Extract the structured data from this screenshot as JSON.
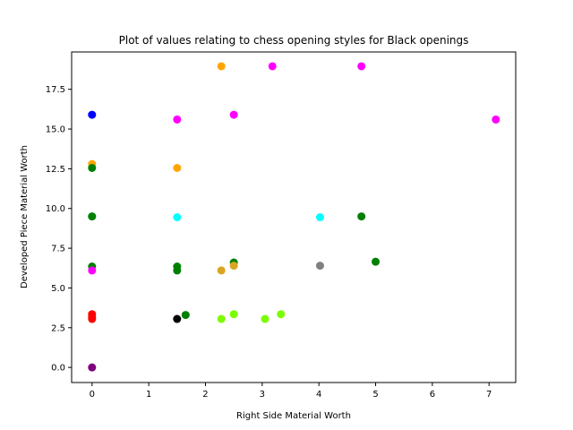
{
  "chart_data": {
    "type": "scatter",
    "title": "Plot of values relating to chess opening styles for Black openings",
    "xlabel": "Right Side Material Worth",
    "ylabel": "Developed Piece Material Worth",
    "xlim": [
      -0.36,
      7.47
    ],
    "ylim": [
      -0.95,
      19.85
    ],
    "xticks": [
      0,
      1,
      2,
      3,
      4,
      5,
      6,
      7
    ],
    "xtick_labels": [
      "0",
      "1",
      "2",
      "3",
      "4",
      "5",
      "6",
      "7"
    ],
    "yticks": [
      0.0,
      2.5,
      5.0,
      7.5,
      10.0,
      12.5,
      15.0,
      17.5
    ],
    "ytick_labels": [
      "0.0",
      "2.5",
      "5.0",
      "7.5",
      "10.0",
      "12.5",
      "15.0",
      "17.5"
    ],
    "grid": false,
    "points": [
      {
        "x": 0,
        "y": 15.9,
        "color": "#0000ff"
      },
      {
        "x": 0,
        "y": 12.8,
        "color": "#ffa500"
      },
      {
        "x": 0,
        "y": 12.55,
        "color": "#008000"
      },
      {
        "x": 0,
        "y": 9.5,
        "color": "#00ffff"
      },
      {
        "x": 0,
        "y": 9.5,
        "color": "#008000"
      },
      {
        "x": 0,
        "y": 6.35,
        "color": "#008000"
      },
      {
        "x": 0,
        "y": 6.1,
        "color": "#ff00ff"
      },
      {
        "x": 0,
        "y": 3.35,
        "color": "#ff0000"
      },
      {
        "x": 0,
        "y": 3.2,
        "color": "#ff0000"
      },
      {
        "x": 0,
        "y": 3.05,
        "color": "#ff0000"
      },
      {
        "x": 0,
        "y": 0,
        "color": "#800080"
      },
      {
        "x": 1.5,
        "y": 15.6,
        "color": "#ff00ff"
      },
      {
        "x": 1.5,
        "y": 12.55,
        "color": "#ffa500"
      },
      {
        "x": 1.5,
        "y": 9.45,
        "color": "#00ffff"
      },
      {
        "x": 1.5,
        "y": 6.35,
        "color": "#008000"
      },
      {
        "x": 1.5,
        "y": 6.1,
        "color": "#008000"
      },
      {
        "x": 1.5,
        "y": 3.05,
        "color": "#000000"
      },
      {
        "x": 1.65,
        "y": 3.3,
        "color": "#008000"
      },
      {
        "x": 2.28,
        "y": 18.95,
        "color": "#ffa500"
      },
      {
        "x": 2.28,
        "y": 6.1,
        "color": "#daa520"
      },
      {
        "x": 2.28,
        "y": 3.05,
        "color": "#7cfc00"
      },
      {
        "x": 2.5,
        "y": 15.9,
        "color": "#ff00ff"
      },
      {
        "x": 2.5,
        "y": 6.6,
        "color": "#008000"
      },
      {
        "x": 2.5,
        "y": 6.4,
        "color": "#daa520"
      },
      {
        "x": 2.5,
        "y": 3.35,
        "color": "#7cfc00"
      },
      {
        "x": 3.05,
        "y": 3.05,
        "color": "#7cfc00"
      },
      {
        "x": 3.18,
        "y": 18.95,
        "color": "#ff00ff"
      },
      {
        "x": 3.33,
        "y": 3.35,
        "color": "#7cfc00"
      },
      {
        "x": 4.02,
        "y": 9.45,
        "color": "#00ffff"
      },
      {
        "x": 4.02,
        "y": 6.4,
        "color": "#808080"
      },
      {
        "x": 4.75,
        "y": 18.95,
        "color": "#ff00ff"
      },
      {
        "x": 4.75,
        "y": 9.5,
        "color": "#008000"
      },
      {
        "x": 5.0,
        "y": 6.65,
        "color": "#008000"
      },
      {
        "x": 7.12,
        "y": 15.6,
        "color": "#ff00ff"
      }
    ]
  }
}
